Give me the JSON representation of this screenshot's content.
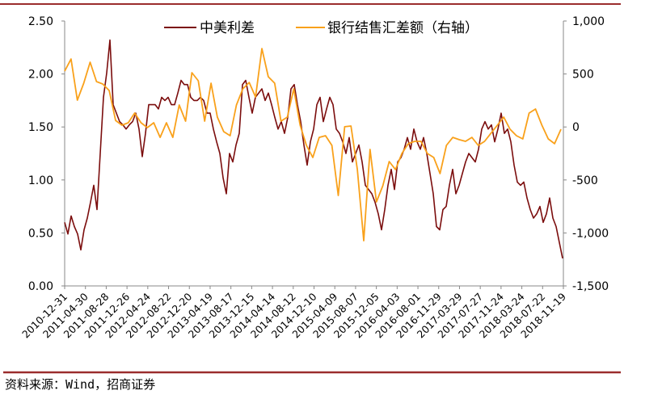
{
  "chart_data": {
    "type": "line",
    "title": "",
    "legend_position": "top",
    "left_axis": {
      "ylim": [
        0,
        2.5
      ],
      "ticks": [
        "0.00",
        "0.50",
        "1.00",
        "1.50",
        "2.00",
        "2.50"
      ]
    },
    "right_axis": {
      "ylim": [
        -1500,
        1000
      ],
      "ticks": [
        "-1,500",
        "-1,000",
        "-500",
        "0",
        "500",
        "1,000"
      ]
    },
    "x_range": [
      "2010-12-31",
      "2018-11-19"
    ],
    "x_ticks": [
      "2010-12-31",
      "2011-04-30",
      "2011-08-28",
      "2011-12-26",
      "2012-04-24",
      "2012-08-22",
      "2012-12-20",
      "2013-04-19",
      "2013-08-17",
      "2013-12-15",
      "2014-04-14",
      "2014-08-12",
      "2014-12-10",
      "2015-04-09",
      "2015-08-07",
      "2015-12-05",
      "2016-04-03",
      "2016-08-01",
      "2016-11-29",
      "2017-03-29",
      "2017-07-27",
      "2017-11-24",
      "2018-03-24",
      "2018-07-22",
      "2018-11-19"
    ],
    "series": [
      {
        "name": "中美利差",
        "axis": "left",
        "color": "#7b0d0d",
        "values": [
          0.6,
          0.49,
          0.66,
          0.56,
          0.49,
          0.34,
          0.53,
          0.64,
          0.79,
          0.95,
          0.72,
          1.25,
          1.78,
          2.01,
          2.32,
          1.71,
          1.63,
          1.55,
          1.52,
          1.48,
          1.52,
          1.55,
          1.63,
          1.48,
          1.22,
          1.44,
          1.71,
          1.71,
          1.71,
          1.67,
          1.78,
          1.75,
          1.78,
          1.71,
          1.71,
          1.82,
          1.94,
          1.9,
          1.9,
          1.78,
          1.75,
          1.75,
          1.78,
          1.75,
          1.63,
          1.63,
          1.48,
          1.36,
          1.25,
          1.02,
          0.87,
          1.25,
          1.17,
          1.33,
          1.44,
          1.9,
          1.94,
          1.78,
          1.63,
          1.78,
          1.82,
          1.86,
          1.75,
          1.82,
          1.71,
          1.59,
          1.48,
          1.55,
          1.44,
          1.59,
          1.86,
          1.9,
          1.71,
          1.55,
          1.33,
          1.14,
          1.36,
          1.48,
          1.71,
          1.78,
          1.55,
          1.67,
          1.78,
          1.71,
          1.48,
          1.44,
          1.36,
          1.25,
          1.4,
          1.17,
          1.25,
          1.33,
          1.17,
          0.95,
          0.91,
          0.87,
          0.79,
          0.68,
          0.53,
          0.72,
          0.95,
          1.1,
          0.91,
          1.17,
          1.21,
          1.29,
          1.4,
          1.29,
          1.48,
          1.36,
          1.29,
          1.4,
          1.25,
          1.06,
          0.87,
          0.56,
          0.53,
          0.72,
          0.75,
          0.95,
          1.1,
          0.87,
          0.95,
          1.06,
          1.17,
          1.25,
          1.21,
          1.17,
          1.29,
          1.48,
          1.55,
          1.48,
          1.52,
          1.36,
          1.48,
          1.63,
          1.44,
          1.48,
          1.36,
          1.14,
          0.98,
          0.95,
          0.98,
          0.83,
          0.72,
          0.64,
          0.68,
          0.75,
          0.6,
          0.68,
          0.83,
          0.64,
          0.56,
          0.41,
          0.26
        ]
      },
      {
        "name": "银行结售汇差额（右轴）",
        "axis": "right",
        "color": "#f9a11b",
        "values": [
          527,
          641,
          253,
          413,
          611,
          428,
          405,
          344,
          62,
          17,
          40,
          131,
          40,
          -6,
          40,
          -98,
          40,
          -98,
          207,
          55,
          512,
          436,
          55,
          413,
          93,
          -44,
          -82,
          207,
          360,
          420,
          283,
          740,
          474,
          413,
          55,
          93,
          360,
          17,
          -174,
          -288,
          -98,
          -82,
          -174,
          -646,
          2,
          9,
          -402,
          -1073,
          -212,
          -707,
          -555,
          -326,
          -402,
          -250,
          -158,
          -136,
          -136,
          -250,
          -288,
          -440,
          -174,
          -98,
          -120,
          -136,
          -98,
          -174,
          -136,
          -59,
          17,
          93,
          -21,
          -82,
          -113,
          131,
          169,
          17,
          -113,
          -158,
          -21
        ]
      }
    ]
  },
  "legend": {
    "series1": "中美利差",
    "series2": "银行结售汇差额（右轴）"
  },
  "source": "资料来源：Wind，招商证券"
}
